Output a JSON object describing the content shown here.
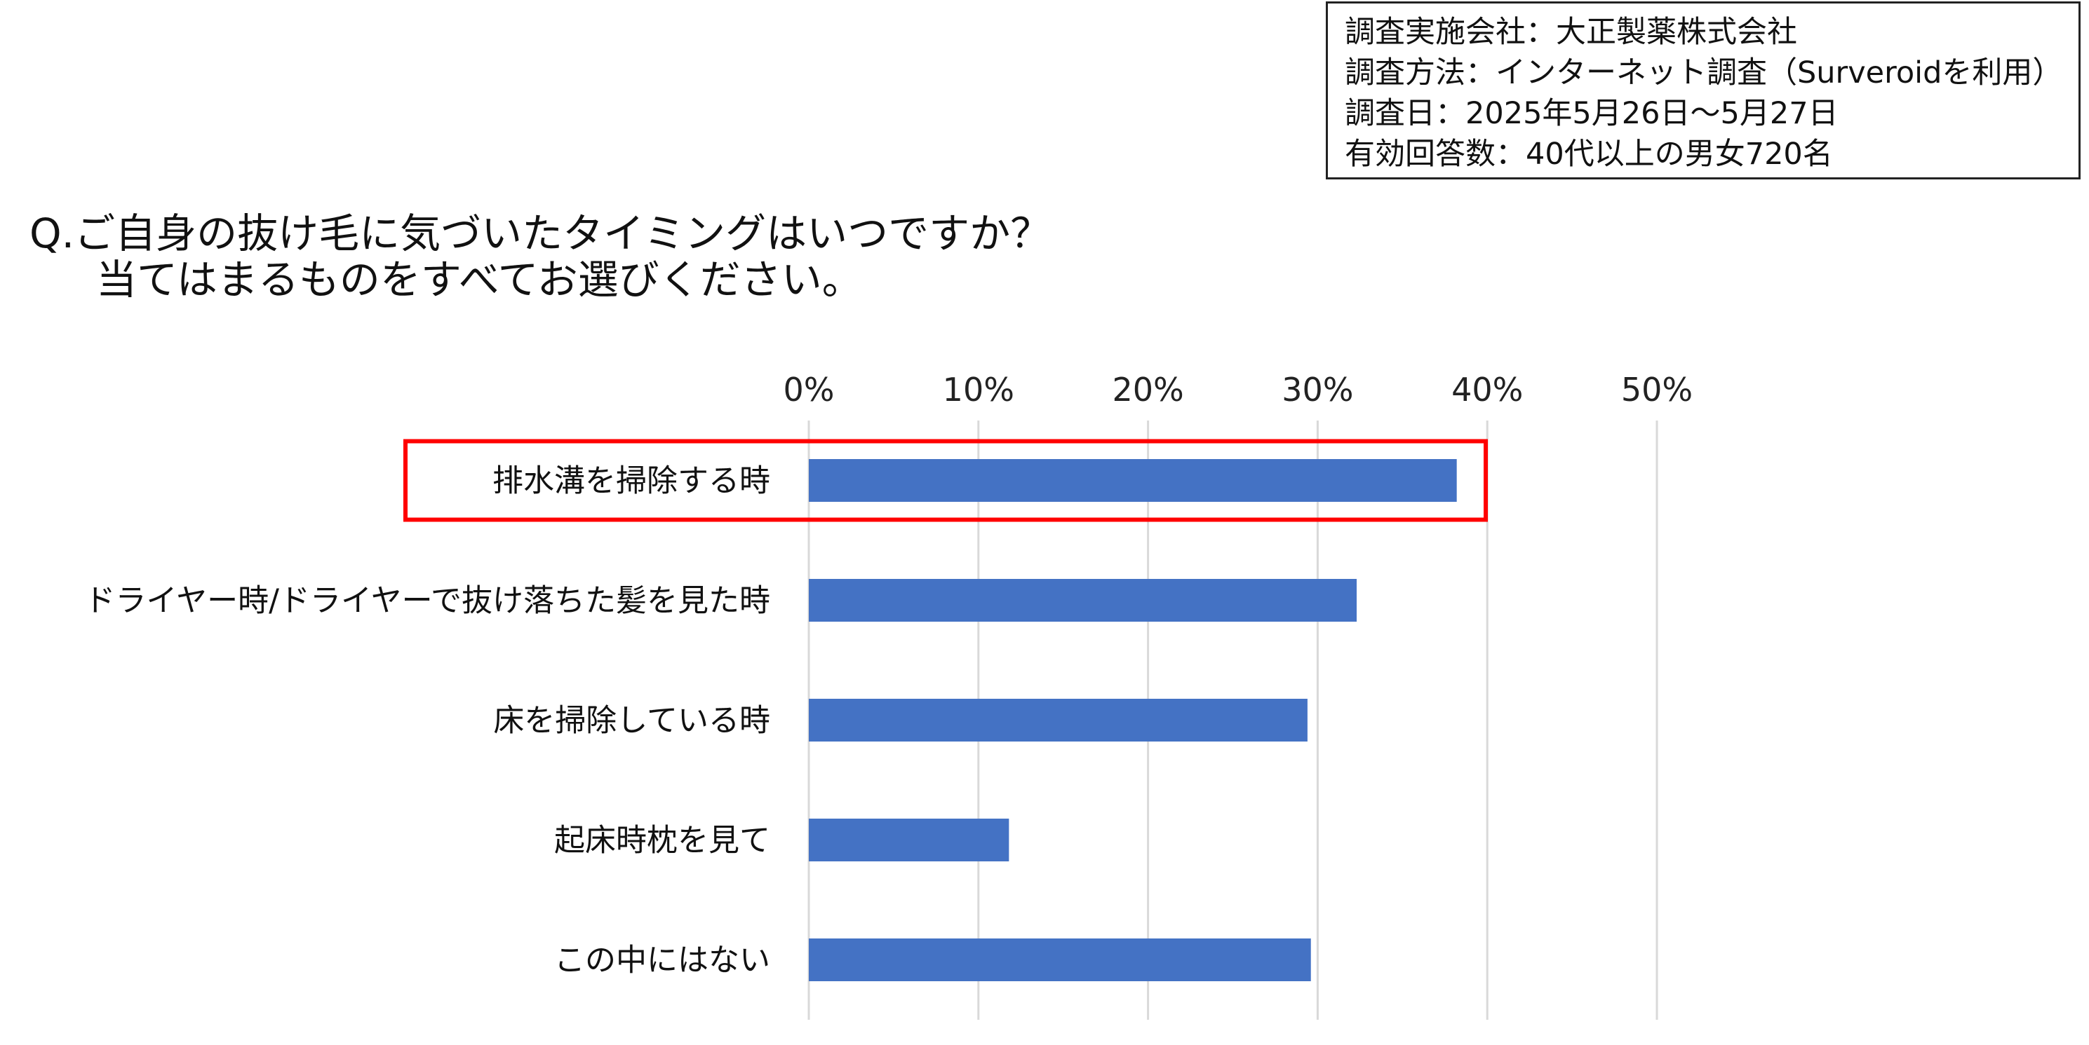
{
  "info_box": {
    "lines": [
      "調査実施会社：大正製薬株式会社",
      "調査方法：インターネット調査（Surveroidを利用）",
      "調査日：2025年5月26日～5月27日",
      "有効回答数：40代以上の男女720名"
    ]
  },
  "question": {
    "line1": "Q.ご自身の抜け毛に気づいたタイミングはいつですか？",
    "line2": "当てはまるものをすべてお選びください。"
  },
  "chart_data": {
    "type": "bar",
    "orientation": "horizontal",
    "categories": [
      "排水溝を掃除する時",
      "ドライヤー時/ドライヤーで抜け落ちた髪を見た時",
      "床を掃除している時",
      "起床時枕を見て",
      "この中にはない"
    ],
    "values": [
      38.2,
      32.3,
      29.4,
      11.8,
      29.6
    ],
    "unit": "%",
    "xlim": [
      0,
      50
    ],
    "ticks": [
      "0%",
      "10%",
      "20%",
      "30%",
      "40%",
      "50%"
    ],
    "tick_position": "top",
    "grid": true,
    "bar_color": "#4472C4",
    "highlight": {
      "category_index": 0,
      "color": "#FF0000"
    }
  }
}
